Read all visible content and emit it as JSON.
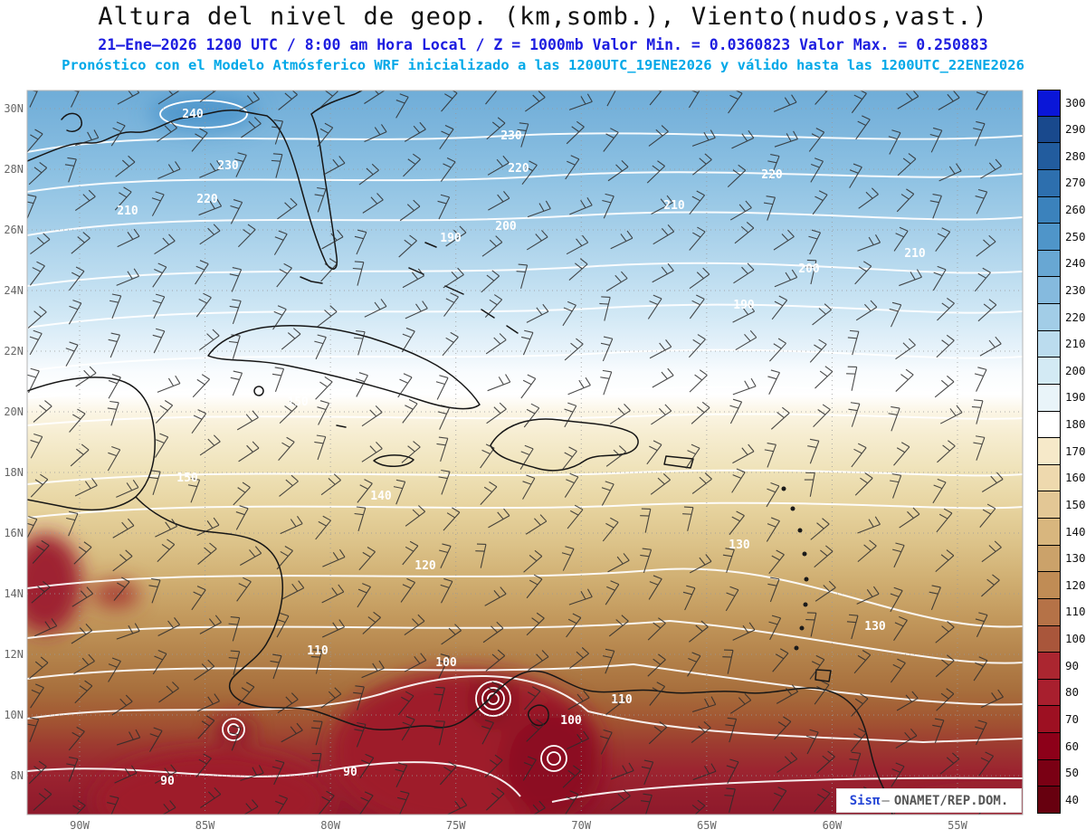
{
  "header": {
    "title": "Altura del nivel de geop. (km,somb.), Viento(nudos,vast.)",
    "valid_line": "21–Ene–2026  1200 UTC / 8:00 am Hora Local / Z = 1000mb Valor Min. = 0.0360823  Valor Max. = 0.250883",
    "model_line": "Pronóstico con el Modelo Atmósferico WRF inicializado a las 1200UTC_19ENE2026 y válido hasta las  1200UTC_22ENE2026"
  },
  "watermark": {
    "brand": "Sisπ",
    "separator": "—",
    "org": "ONAMET/REP.DOM."
  },
  "chart_data": {
    "type": "heatmap",
    "title": "Altura del nivel de geop. (km,somb.), Viento(nudos,vast.)",
    "variable": "Altura del nivel de geopotencial (km, sombreado)",
    "wind_overlay": "Viento (nudos, vástagos)",
    "wind_units": "nudos",
    "model": "WRF",
    "level": "1000mb",
    "valid_time": "21–Ene–2026 1200 UTC / 8:00 am Hora Local",
    "init_time": "1200UTC_19ENE2026",
    "valid_until": "1200UTC_22ENE2026",
    "value_min": 0.0360823,
    "value_max": 0.250883,
    "legend_position": "right",
    "grid": true,
    "lat_tick_values": [
      30,
      28,
      26,
      24,
      22,
      20,
      18,
      16,
      14,
      12,
      10,
      8
    ],
    "lat_tick_labels": [
      "30N",
      "28N",
      "26N",
      "24N",
      "22N",
      "20N",
      "18N",
      "16N",
      "14N",
      "12N",
      "10N",
      "8N"
    ],
    "lon_tick_values": [
      -90,
      -85,
      -80,
      -75,
      -70,
      -65,
      -60,
      -55
    ],
    "lon_tick_labels": [
      "90W",
      "85W",
      "80W",
      "75W",
      "70W",
      "65W",
      "60W",
      "55W"
    ],
    "shading_levels": [
      40,
      50,
      60,
      70,
      80,
      90,
      100,
      110,
      120,
      130,
      140,
      150,
      160,
      170,
      180,
      190,
      200,
      210,
      220,
      230,
      240,
      250,
      260,
      270,
      280,
      290,
      300
    ],
    "shading_colors": [
      "#67000f",
      "#7a0014",
      "#8d0019",
      "#9d1022",
      "#a81f2e",
      "#ab2630",
      "#a9563b",
      "#b57247",
      "#c08c55",
      "#cba26a",
      "#d8b67e",
      "#e3c795",
      "#eed9ae",
      "#f6e9c9",
      "#ffffff",
      "#e9f4f9",
      "#d3eaf4",
      "#bbdcee",
      "#a2cde7",
      "#85bade",
      "#68a7d3",
      "#4f95c9",
      "#3b82bc",
      "#2d6fae",
      "#225c9e",
      "#19498d",
      "#0a16d8"
    ],
    "contour_labels": [
      {
        "value": 240,
        "lon": -85.5,
        "lat": 29.7
      },
      {
        "value": 230,
        "lon": -72.8,
        "lat": 29.0
      },
      {
        "value": 230,
        "lon": -84.1,
        "lat": 28.0
      },
      {
        "value": 220,
        "lon": -72.5,
        "lat": 27.9
      },
      {
        "value": 220,
        "lon": -62.4,
        "lat": 27.7
      },
      {
        "value": 220,
        "lon": -84.9,
        "lat": 26.9
      },
      {
        "value": 210,
        "lon": -66.3,
        "lat": 26.7
      },
      {
        "value": 210,
        "lon": -88.1,
        "lat": 26.5
      },
      {
        "value": 210,
        "lon": -56.7,
        "lat": 25.1
      },
      {
        "value": 200,
        "lon": -73.0,
        "lat": 26.0
      },
      {
        "value": 200,
        "lon": -60.9,
        "lat": 24.6
      },
      {
        "value": 190,
        "lon": -75.2,
        "lat": 25.6
      },
      {
        "value": 190,
        "lon": -63.5,
        "lat": 23.4
      },
      {
        "value": 150,
        "lon": -81.3,
        "lat": 20.2
      },
      {
        "value": 150,
        "lon": -85.7,
        "lat": 17.7
      },
      {
        "value": 140,
        "lon": -78.0,
        "lat": 17.1
      },
      {
        "value": 130,
        "lon": -63.7,
        "lat": 15.5
      },
      {
        "value": 130,
        "lon": -58.3,
        "lat": 12.8
      },
      {
        "value": 120,
        "lon": -76.2,
        "lat": 14.8
      },
      {
        "value": 110,
        "lon": -80.5,
        "lat": 12.0
      },
      {
        "value": 110,
        "lon": -68.4,
        "lat": 10.4
      },
      {
        "value": 100,
        "lon": -75.4,
        "lat": 11.6
      },
      {
        "value": 100,
        "lon": -70.4,
        "lat": 9.7
      },
      {
        "value": 90,
        "lon": -86.5,
        "lat": 7.7
      },
      {
        "value": 90,
        "lon": -79.2,
        "lat": 8.0
      }
    ]
  }
}
